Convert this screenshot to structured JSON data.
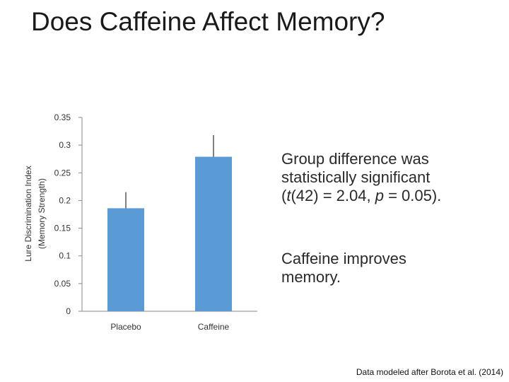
{
  "slide": {
    "title": "Does Caffeine Affect Memory?",
    "bullet1": {
      "line1": "Group difference was",
      "line2": "statistically significant",
      "stat_open": "(",
      "t_symbol": "t",
      "t_value": "(42) = 2.04, ",
      "p_symbol": "p",
      "p_value": " = 0.05)."
    },
    "bullet2": {
      "line1": "Caffeine improves",
      "line2": "memory."
    },
    "citation": "Data modeled after Borota et al. (2014)"
  },
  "colors": {
    "bar": "#5b9bd5",
    "axis": "#888888",
    "error_bar": "#000000"
  },
  "chart_data": {
    "type": "bar",
    "title": "",
    "categories": [
      "Placebo",
      "Caffeine"
    ],
    "values": [
      0.186,
      0.279
    ],
    "error_upper": [
      0.215,
      0.318
    ],
    "ylabel_line1": "Lure Discrimination Index",
    "ylabel_line2": "(Memory Strength)",
    "xlabel": "",
    "ylim": [
      0,
      0.35
    ],
    "yticks": [
      0,
      0.05,
      0.1,
      0.15,
      0.2,
      0.25,
      0.3,
      0.35
    ],
    "ytick_labels": [
      "0",
      "0.05",
      "0.1",
      "0.15",
      "0.2",
      "0.25",
      "0.3",
      "0.35"
    ],
    "grid": false,
    "legend": "none"
  }
}
